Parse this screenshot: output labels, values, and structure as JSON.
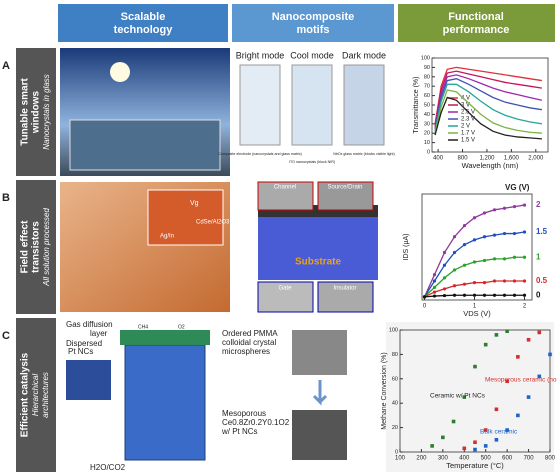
{
  "header": {
    "columns": [
      [
        "Scalable",
        "technology"
      ],
      [
        "Nanocomposite",
        "motifs"
      ],
      [
        "Functional",
        "performance"
      ]
    ]
  },
  "rows": [
    {
      "letter": "A",
      "title": [
        "Tunable smart",
        "windows"
      ],
      "subtitle": "Nanocrystals in glass",
      "motifs": [
        "Bright mode",
        "Cool mode",
        "Dark mode"
      ],
      "captions": [
        "Composite electrode (nanocrystals and glass matrix)",
        "ITO nanocrystals (block NIR)",
        "NbOx glass matrix (blocks visible light)"
      ],
      "chart": {
        "type": "line",
        "xlabel": "Wavelength (nm)",
        "ylabel": "Transmittance (%)",
        "x": [
          350,
          450,
          550,
          700,
          900,
          1100,
          1300,
          1500,
          1700,
          1900,
          2100
        ],
        "xlim": [
          300,
          2200
        ],
        "ylim": [
          0,
          100
        ],
        "xticks": [
          400,
          800,
          {
            "value": 1200,
            "label": "1,200"
          },
          {
            "value": 1600,
            "label": "1,600"
          },
          {
            "value": 2000,
            "label": "2,000"
          }
        ],
        "yticks": [
          0,
          10,
          20,
          30,
          40,
          50,
          60,
          70,
          80,
          90,
          100
        ],
        "series": [
          {
            "name": "4 V",
            "color": "#e0303a",
            "values": [
              30,
              70,
              88,
              90,
              88,
              86,
              84,
              82,
              80,
              78,
              76
            ]
          },
          {
            "name": "3 V",
            "color": "#c2185b",
            "values": [
              28,
              66,
              84,
              86,
              83,
              80,
              77,
              74,
              72,
              70,
              68
            ]
          },
          {
            "name": "2.5 V",
            "color": "#9c27b0",
            "values": [
              26,
              62,
              80,
              82,
              78,
              73,
              68,
              64,
              61,
              58,
              55
            ]
          },
          {
            "name": "2.3 V",
            "color": "#3f51b5",
            "values": [
              24,
              58,
              76,
              78,
              72,
              65,
              58,
              53,
              50,
              47,
              45
            ]
          },
          {
            "name": "2 V",
            "color": "#26a69a",
            "values": [
              22,
              54,
              72,
              72,
              64,
              54,
              45,
              39,
              35,
              32,
              30
            ]
          },
          {
            "name": "1.7 V",
            "color": "#7cb342",
            "values": [
              20,
              48,
              66,
              64,
              52,
              40,
              31,
              26,
              23,
              21,
              20
            ]
          },
          {
            "name": "1.5 V",
            "color": "#212121",
            "values": [
              18,
              42,
              58,
              55,
              42,
              30,
              22,
              18,
              16,
              15,
              14
            ]
          }
        ]
      }
    },
    {
      "letter": "B",
      "title": [
        "Field effect",
        "transistors"
      ],
      "subtitle": "All solution processed",
      "photo_labels": [
        "Vg",
        "CdSe/Al2O3",
        "Ag/In"
      ],
      "layers": [
        "Channel",
        "Source/Drain",
        "Substrate",
        "Gate",
        "Insulator"
      ],
      "chart": {
        "type": "line",
        "xlabel": "VDS (V)",
        "ylabel": "IDS (µA)",
        "legend_title": "VG (V)",
        "x": [
          0,
          0.2,
          0.4,
          0.6,
          0.8,
          1,
          1.2,
          1.4,
          1.6,
          1.8,
          2
        ],
        "xlim": [
          -0.05,
          2.15
        ],
        "ylim": [
          -2,
          65
        ],
        "xticks": [
          0,
          1,
          2
        ],
        "series": [
          {
            "name": "2",
            "color": "#8e3a9d",
            "values": [
              0,
              14,
              28,
              38,
              45,
              50,
              53,
              55,
              56,
              57,
              58
            ]
          },
          {
            "name": "1.5",
            "color": "#1f4fbf",
            "values": [
              0,
              10,
              20,
              28,
              33,
              36,
              38,
              39,
              40,
              40,
              41
            ]
          },
          {
            "name": "1",
            "color": "#2ca02c",
            "values": [
              0,
              6,
              12,
              17,
              20,
              22,
              23,
              24,
              24,
              25,
              25
            ]
          },
          {
            "name": "0.5",
            "color": "#d62728",
            "values": [
              0,
              3,
              5,
              7,
              8,
              9,
              9,
              10,
              10,
              10,
              10
            ]
          },
          {
            "name": "0",
            "color": "#111111",
            "values": [
              0,
              0.5,
              0.8,
              1,
              1,
              1,
              1,
              1,
              1,
              1,
              1
            ]
          }
        ]
      }
    },
    {
      "letter": "C",
      "title": [
        "Efficient catalysis"
      ],
      "subtitle": [
        "Hierarchical",
        "architectures"
      ],
      "labels": [
        "Gas diffusion",
        "layer",
        "Dispersed",
        "Pt NCs",
        "H2O/CO2",
        "CH4",
        "O2"
      ],
      "motif_labels": [
        "Ordered PMMA",
        "colloidal crystal",
        "microspheres",
        "Mesoporous",
        "Ce0.8Zr0.2Y0.1O2",
        "w/ Pt NCs"
      ],
      "chart": {
        "type": "scatter",
        "xlabel": "Temperature (°C)",
        "ylabel": "Methane Conversion (%)",
        "xlim": [
          100,
          800
        ],
        "ylim": [
          0,
          100
        ],
        "xticks": [
          100,
          200,
          300,
          400,
          500,
          600,
          700,
          800
        ],
        "yticks": [
          0,
          20,
          40,
          60,
          80,
          100
        ],
        "series": [
          {
            "name": "Ceramic w/ Pt NCs",
            "color": "#2e7d32",
            "x": [
              250,
              300,
              350,
              400,
              450,
              500,
              550,
              600
            ],
            "values": [
              5,
              12,
              25,
              45,
              70,
              88,
              96,
              99
            ]
          },
          {
            "name": "Mesoporous ceramic (no NCs)",
            "color": "#d32f2f",
            "x": [
              400,
              450,
              500,
              550,
              600,
              650,
              700,
              750
            ],
            "values": [
              3,
              8,
              18,
              35,
              58,
              78,
              92,
              98
            ]
          },
          {
            "name": "Bulk ceramic",
            "color": "#1e63c8",
            "x": [
              450,
              500,
              550,
              600,
              650,
              700,
              750,
              800
            ],
            "values": [
              2,
              5,
              10,
              18,
              30,
              45,
              62,
              80
            ]
          }
        ]
      }
    }
  ]
}
